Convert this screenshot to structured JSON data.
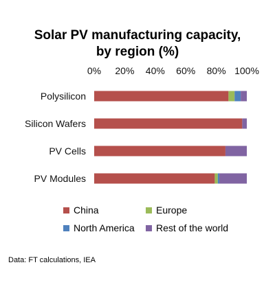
{
  "colors": {
    "China": "#b5504c",
    "Europe": "#9bbb59",
    "North America": "#4f81bd",
    "Rest of the world": "#8064a2"
  },
  "chart_data": {
    "type": "bar",
    "orientation": "horizontal",
    "stacked": true,
    "title": "Solar PV manufacturing capacity, by region (%)",
    "title_lines": [
      "Solar PV manufacturing capacity,",
      "by region (%)"
    ],
    "xlim": [
      0,
      100
    ],
    "x_tick_labels": [
      "0%",
      "20%",
      "40%",
      "60%",
      "80%",
      "100%"
    ],
    "x_axis_position": "top",
    "grid": false,
    "legend_position": "bottom",
    "categories": [
      "Polysilicon",
      "Silicon Wafers",
      "PV Cells",
      "PV Modules"
    ],
    "series": [
      {
        "name": "China",
        "values": [
          88,
          97,
          86,
          79
        ]
      },
      {
        "name": "Europe",
        "values": [
          4,
          0,
          0,
          2
        ]
      },
      {
        "name": "North America",
        "values": [
          4,
          0,
          0,
          1
        ]
      },
      {
        "name": "Rest of the world",
        "values": [
          4,
          3,
          14,
          18
        ]
      }
    ]
  },
  "source": "Data: FT calculations, IEA"
}
